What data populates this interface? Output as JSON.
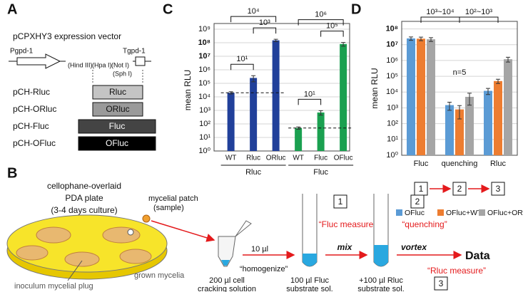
{
  "panel_labels": [
    "A",
    "B",
    "C",
    "D"
  ],
  "panel_a": {
    "title": "pCPXHY3 expression vector",
    "promoter": "Pgpd-1",
    "terminator": "Tgpd-1",
    "sites": [
      "(Hind III)",
      "(Hpa I)",
      "(Not I)",
      "(Sph I)"
    ],
    "constructs": [
      {
        "name": "pCH-Rluc",
        "insert": "Rluc"
      },
      {
        "name": "pCH-ORluc",
        "insert": "ORluc"
      },
      {
        "name": "pCH-Fluc",
        "insert": "Fluc"
      },
      {
        "name": "pCH-OFluc",
        "insert": "OFluc"
      }
    ]
  },
  "panel_b": {
    "plate": [
      "cellophane-overlaid",
      "PDA plate",
      "(3-4 days culture)"
    ],
    "sample": [
      "mycelial patch",
      "(sample)"
    ],
    "grown": "grown mycelia",
    "plug": "inoculum mycelial plug",
    "volume": "10 µl",
    "homogenize": "“homogenize”",
    "tubes": [
      [
        "200 µl cell",
        "cracking solution"
      ],
      [
        "100 µl Fluc",
        "substrate sol."
      ],
      [
        "+100 µl Rluc",
        "substrate sol."
      ]
    ],
    "steps": [
      {
        "number": "1",
        "label": "“Fluc measure”",
        "action": "mix"
      },
      {
        "number": "2",
        "label": "“quenching”",
        "action": "vortex"
      },
      {
        "number": "3",
        "label": "“Rluc measure”"
      }
    ],
    "result": "Data"
  },
  "chart_data": [
    {
      "type": "bar",
      "y_label": "mean RLU",
      "log_scale": true,
      "grid": true,
      "ylim": [
        1,
        1000000000
      ],
      "yticks": [
        {
          "value": 1,
          "label": "10⁰"
        },
        {
          "value": 10,
          "label": "10¹"
        },
        {
          "value": 100,
          "label": "10²"
        },
        {
          "value": 1000,
          "label": "10³"
        },
        {
          "value": 10000,
          "label": "10⁴"
        },
        {
          "value": 100000,
          "label": "10⁵"
        },
        {
          "value": 1000000,
          "label": "10⁶"
        },
        {
          "value": 10000000,
          "label": "10⁷",
          "color": "#e41a1c"
        },
        {
          "value": 100000000,
          "label": "10⁸",
          "color": "#e41a1c"
        },
        {
          "value": 1000000000,
          "label": "10⁹"
        }
      ],
      "groups": [
        {
          "name": "Rluc",
          "color": "#21409a",
          "categories": [
            "WT",
            "Rluc",
            "ORluc"
          ],
          "values": [
            20000,
            250000,
            150000000
          ],
          "errors": [
            4000,
            120000,
            30000000
          ],
          "reference_line": true,
          "brackets": [
            {
              "label": "10¹",
              "between": [
                "WT",
                "Rluc"
              ]
            },
            {
              "label": "10³",
              "between": [
                "Rluc",
                "ORluc"
              ]
            },
            {
              "label": "10⁴",
              "between": [
                "WT",
                "ORluc"
              ]
            }
          ]
        },
        {
          "name": "Fluc",
          "color": "#1aa050",
          "categories": [
            "WT",
            "Fluc",
            "OFluc"
          ],
          "values": [
            50,
            700,
            80000000
          ],
          "errors": [
            10,
            250,
            25000000
          ],
          "reference_line": true,
          "brackets": [
            {
              "label": "10¹",
              "between": [
                "WT",
                "Fluc"
              ]
            },
            {
              "label": "10⁵",
              "between": [
                "Fluc",
                "OFluc"
              ]
            },
            {
              "label": "10⁶",
              "between": [
                "WT",
                "OFluc"
              ]
            }
          ]
        }
      ]
    },
    {
      "type": "bar",
      "y_label": "mean RLU",
      "log_scale": true,
      "grid": true,
      "ylim": [
        1,
        300000000
      ],
      "yticks": [
        {
          "value": 1,
          "label": "10⁰"
        },
        {
          "value": 10,
          "label": "10¹"
        },
        {
          "value": 100,
          "label": "10²"
        },
        {
          "value": 1000,
          "label": "10³"
        },
        {
          "value": 10000,
          "label": "10⁴"
        },
        {
          "value": 100000,
          "label": "10⁵"
        },
        {
          "value": 1000000,
          "label": "10⁶"
        },
        {
          "value": 10000000,
          "label": "10⁷",
          "color": "#e41a1c"
        },
        {
          "value": 100000000,
          "label": "10⁸",
          "color": "#e41a1c"
        }
      ],
      "categories": [
        "Fluc",
        "quenching",
        "Rluc"
      ],
      "series": [
        {
          "name": "OFluc",
          "color": "#5b9bd5",
          "values": [
            25000000,
            1500,
            12000
          ],
          "errors": [
            6000000,
            800,
            5000
          ]
        },
        {
          "name": "OFluc+WT",
          "color": "#ed7d31",
          "values": [
            24000000,
            800,
            50000
          ],
          "errors": [
            6000000,
            600,
            15000
          ]
        },
        {
          "name": "OFluc+ORluc",
          "color": "#a5a5a5",
          "values": [
            22000000,
            5000,
            1200000
          ],
          "errors": [
            6000000,
            3500,
            400000
          ]
        }
      ],
      "brackets": [
        {
          "label": "10³~10⁴",
          "between": [
            "Fluc",
            "quenching"
          ]
        },
        {
          "label": "10²~10³",
          "between": [
            "quenching",
            "Rluc"
          ]
        }
      ],
      "annotation": "n=5",
      "steps": [
        "1",
        "2",
        "3"
      ],
      "legend": "bottom"
    }
  ]
}
